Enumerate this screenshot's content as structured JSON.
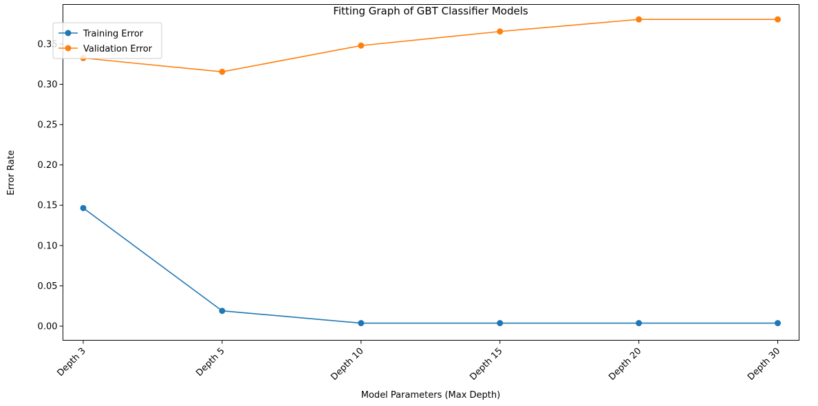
{
  "chart_data": {
    "type": "line",
    "title": "Fitting Graph of GBT Classifier Models",
    "xlabel": "Model Parameters (Max Depth)",
    "ylabel": "Error Rate",
    "categories": [
      "Depth 3",
      "Depth 5",
      "Depth 10",
      "Depth 15",
      "Depth 20",
      "Depth 30"
    ],
    "yticks": [
      "0.00",
      "0.05",
      "0.10",
      "0.15",
      "0.20",
      "0.25",
      "0.30",
      "0.35"
    ],
    "ylim": [
      -0.0175,
      0.399
    ],
    "grid": false,
    "legend_position": "top-left",
    "series": [
      {
        "name": "Training Error",
        "color": "#1f77b4",
        "marker": "circle",
        "values": [
          0.1465,
          0.019,
          0.0038,
          0.0038,
          0.0038,
          0.0038
        ]
      },
      {
        "name": "Validation Error",
        "color": "#ff7f0e",
        "marker": "circle",
        "values": [
          0.3325,
          0.3155,
          0.348,
          0.3655,
          0.3805,
          0.3805
        ]
      }
    ]
  }
}
